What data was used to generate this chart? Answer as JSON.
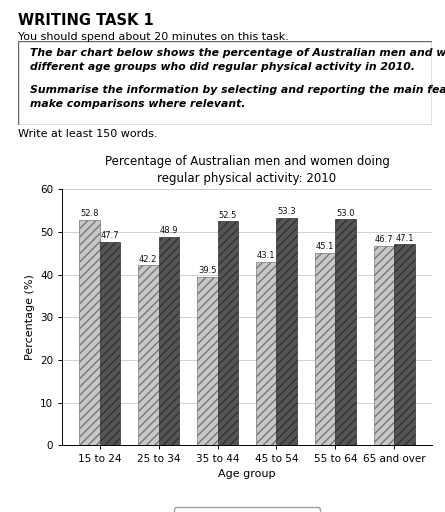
{
  "title": "Percentage of Australian men and women doing\nregular physical activity: 2010",
  "age_groups": [
    "15 to 24",
    "25 to 34",
    "35 to 44",
    "45 to 54",
    "55 to 64",
    "65 and over"
  ],
  "male_values": [
    52.8,
    42.2,
    39.5,
    43.1,
    45.1,
    46.7
  ],
  "female_values": [
    47.7,
    48.9,
    52.5,
    53.3,
    53.0,
    47.1
  ],
  "male_color": "#c8c8c8",
  "female_color": "#555555",
  "male_hatch": "////",
  "female_hatch": "////",
  "ylabel": "Percentage (%)",
  "xlabel": "Age group",
  "ylim": [
    0,
    60
  ],
  "yticks": [
    0,
    10,
    20,
    30,
    40,
    50,
    60
  ],
  "bar_width": 0.35,
  "title_fontsize": 8.5,
  "axis_label_fontsize": 8,
  "tick_fontsize": 7.5,
  "value_fontsize": 6,
  "legend_fontsize": 8,
  "header_title": "WRITING TASK 1",
  "header_line1": "You should spend about 20 minutes on this task.",
  "box_line1": "The bar chart below shows the percentage of Australian men and women in",
  "box_line2": "different age groups who did regular physical activity in 2010.",
  "box_line3": "Summarise the information by selecting and reporting the main features, and",
  "box_line4": "make comparisons where relevant.",
  "footer_text": "Write at least 150 words.",
  "background_color": "#ffffff",
  "grid_color": "#d0d0d0"
}
